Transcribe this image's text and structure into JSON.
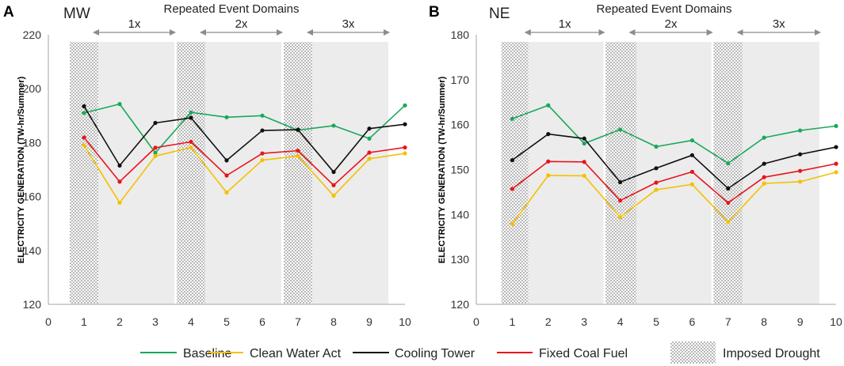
{
  "colors": {
    "baseline": "#1aa85a",
    "clean_water_act": "#f5c000",
    "cooling_tower": "#111111",
    "fixed_coal_fuel": "#e8141c",
    "shade": "#ececec",
    "axis": "#a6a6a6",
    "arrow": "#8c8c8c",
    "drought": "#d6d6d6"
  },
  "legend": [
    {
      "label": "Baseline",
      "series": "baseline"
    },
    {
      "label": "Clean Water Act",
      "series": "clean_water_act"
    },
    {
      "label": "Cooling Tower",
      "series": "cooling_tower"
    },
    {
      "label": "Fixed Coal Fuel",
      "series": "fixed_coal_fuel"
    },
    {
      "label": "Imposed Drought",
      "series": "drought"
    }
  ],
  "chart_data": [
    {
      "type": "line",
      "panel_letter": "A",
      "region": "MW",
      "title": "Repeated Event Domains",
      "ylabel": "ELECTRICITY GENERATION (TW-hr/Summer)",
      "xlim": [
        0,
        10
      ],
      "ylim": [
        120,
        220
      ],
      "xticks": [
        0,
        1,
        2,
        3,
        4,
        5,
        6,
        7,
        8,
        9,
        10
      ],
      "yticks": [
        120,
        140,
        160,
        180,
        200,
        220
      ],
      "x": [
        1,
        2,
        3,
        4,
        5,
        6,
        7,
        8,
        9,
        10
      ],
      "domains": [
        {
          "label": "1x",
          "start": 0.6,
          "end": 3.6,
          "drought_start": 0.6,
          "drought_end": 1.4
        },
        {
          "label": "2x",
          "start": 3.6,
          "end": 6.6,
          "drought_start": 3.6,
          "drought_end": 4.4
        },
        {
          "label": "3x",
          "start": 6.6,
          "end": 9.6,
          "drought_start": 6.6,
          "drought_end": 7.4
        }
      ],
      "series": [
        {
          "name": "Baseline",
          "key": "baseline",
          "values": [
            191,
            194.3,
            176.2,
            191.2,
            189.4,
            190,
            184.6,
            186.3,
            181.5,
            193.8
          ]
        },
        {
          "name": "Clean Water Act",
          "key": "clean_water_act",
          "values": [
            179,
            157.7,
            175,
            178.2,
            161.5,
            173.5,
            175,
            160.3,
            174,
            176
          ]
        },
        {
          "name": "Cooling Tower",
          "key": "cooling_tower",
          "values": [
            193.5,
            171.5,
            187.3,
            189.2,
            173.4,
            184.5,
            184.8,
            169.1,
            185.2,
            186.8
          ]
        },
        {
          "name": "Fixed Coal Fuel",
          "key": "fixed_coal_fuel",
          "values": [
            181.9,
            165.5,
            178.1,
            180.3,
            167.8,
            176,
            177,
            164.2,
            176.3,
            178.2
          ]
        }
      ]
    },
    {
      "type": "line",
      "panel_letter": "B",
      "region": "NE",
      "title": "Repeated Event Domains",
      "ylabel": "ELECTRICITY GENERATION (TW-hr/Summer)",
      "xlim": [
        0,
        10
      ],
      "ylim": [
        120,
        180
      ],
      "xticks": [
        0,
        1,
        2,
        3,
        4,
        5,
        6,
        7,
        8,
        9,
        10
      ],
      "yticks": [
        120,
        130,
        140,
        150,
        160,
        170,
        180
      ],
      "x": [
        1,
        2,
        3,
        4,
        5,
        6,
        7,
        8,
        9,
        10
      ],
      "domains": [
        {
          "label": "1x",
          "start": 0.7,
          "end": 3.6,
          "drought_start": 0.7,
          "drought_end": 1.45
        },
        {
          "label": "2x",
          "start": 3.6,
          "end": 6.6,
          "drought_start": 3.6,
          "drought_end": 4.45
        },
        {
          "label": "3x",
          "start": 6.6,
          "end": 9.6,
          "drought_start": 6.6,
          "drought_end": 7.4
        }
      ],
      "series": [
        {
          "name": "Baseline",
          "key": "baseline",
          "values": [
            161.3,
            164.3,
            155.8,
            158.9,
            155.1,
            156.5,
            151.4,
            157.1,
            158.7,
            159.7
          ]
        },
        {
          "name": "Clean Water Act",
          "key": "clean_water_act",
          "values": [
            137.9,
            148.7,
            148.6,
            139.4,
            145.5,
            146.7,
            138.3,
            146.9,
            147.3,
            149.4
          ]
        },
        {
          "name": "Cooling Tower",
          "key": "cooling_tower",
          "values": [
            152.1,
            157.9,
            156.9,
            147.2,
            150.3,
            153.2,
            145.8,
            151.3,
            153.4,
            155
          ]
        },
        {
          "name": "Fixed Coal Fuel",
          "key": "fixed_coal_fuel",
          "values": [
            145.7,
            151.8,
            151.7,
            143.1,
            147.1,
            149.5,
            142.6,
            148.3,
            149.7,
            151.3
          ]
        }
      ]
    }
  ]
}
